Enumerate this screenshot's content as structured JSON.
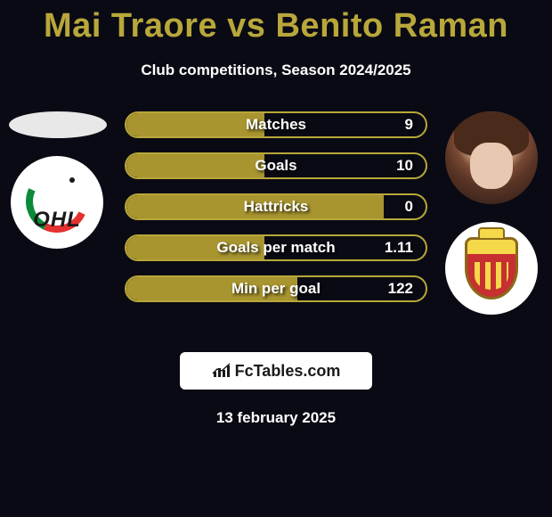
{
  "title": "Mai Traore vs Benito Raman",
  "subtitle": "Club competitions, Season 2024/2025",
  "date": "13 february 2025",
  "footer": {
    "brand": "FcTables.com",
    "icon_color": "#1a1a1a"
  },
  "colors": {
    "background": "#0a0a14",
    "title": "#b8a73a",
    "bar_border": "#b8a73a",
    "bar_fill": "#a89530",
    "text": "#ffffff"
  },
  "left": {
    "badge1": {
      "type": "ellipse",
      "color": "#e8e8e8"
    },
    "badge2": {
      "type": "ohl",
      "text": "OHL",
      "arc_green": "#0b8a3a",
      "arc_red": "#e63131",
      "bg": "#ffffff"
    }
  },
  "right": {
    "badge1": {
      "type": "player-photo"
    },
    "badge2": {
      "type": "mechelen",
      "shield_yellow": "#f5d94a",
      "shield_red": "#c73030",
      "border": "#8a6a1a"
    }
  },
  "stats": [
    {
      "label": "Matches",
      "value": "9",
      "fill_pct": 46
    },
    {
      "label": "Goals",
      "value": "10",
      "fill_pct": 46
    },
    {
      "label": "Hattricks",
      "value": "0",
      "fill_pct": 86
    },
    {
      "label": "Goals per match",
      "value": "1.11",
      "fill_pct": 46
    },
    {
      "label": "Min per goal",
      "value": "122",
      "fill_pct": 57
    }
  ]
}
